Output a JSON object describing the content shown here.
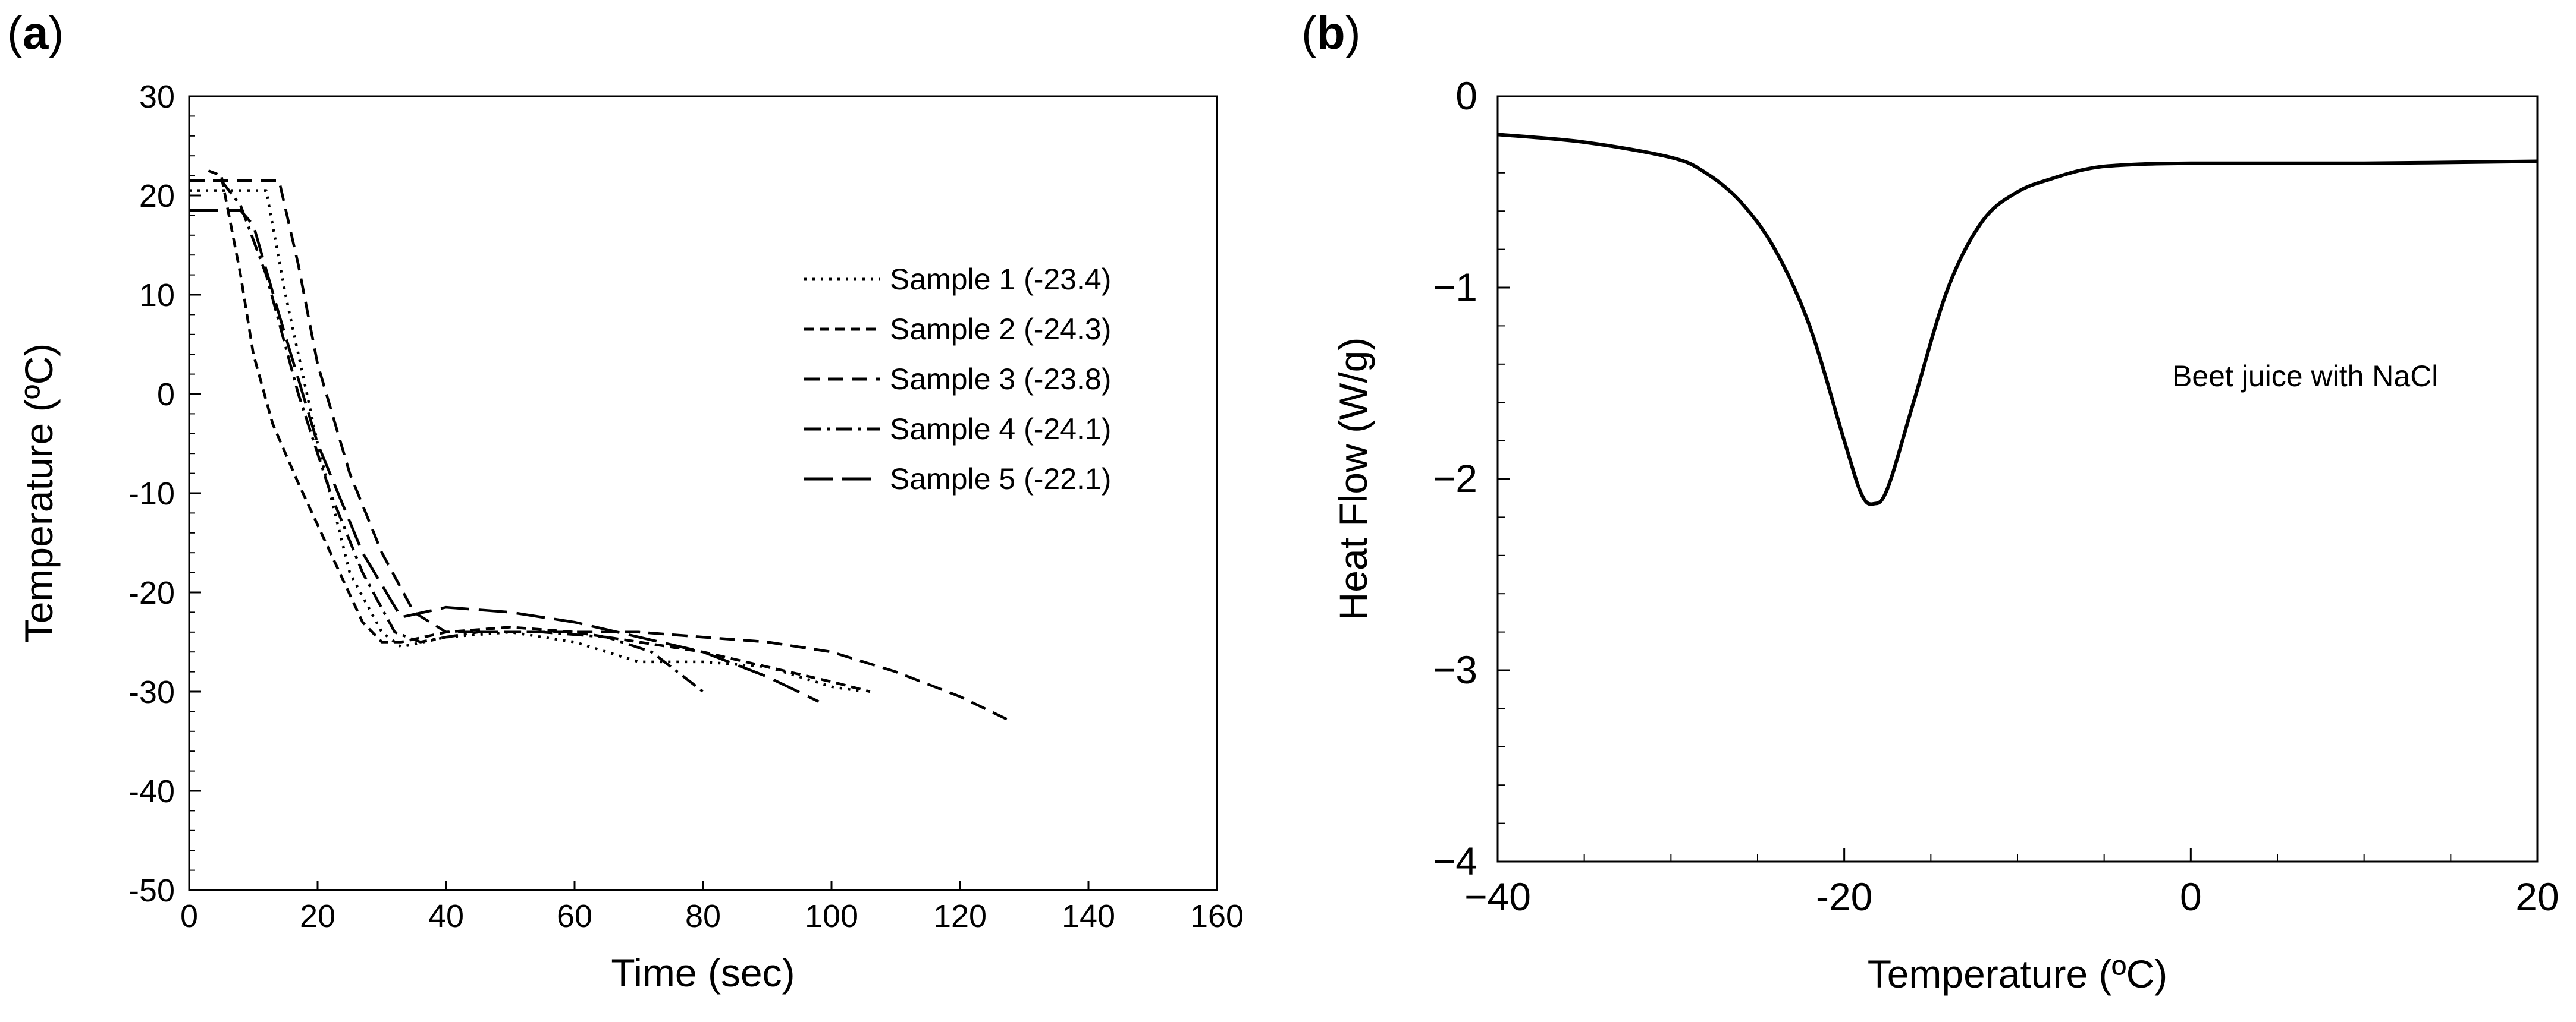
{
  "panels": {
    "a": {
      "open": "(",
      "letter": "a",
      "close": ")"
    },
    "b": {
      "open": "(",
      "letter": "b",
      "close": ")"
    }
  },
  "colors": {
    "line": "#000000",
    "background": "#ffffff"
  },
  "chart_data": [
    {
      "id": "a",
      "type": "line",
      "title": "",
      "xlabel": "Time (sec)",
      "ylabel": "Temperature (ºC)",
      "xlim": [
        0,
        160
      ],
      "ylim": [
        -50,
        30
      ],
      "xticks": [
        0,
        20,
        40,
        60,
        80,
        100,
        120,
        140,
        160
      ],
      "yticks": [
        30,
        20,
        10,
        0,
        -10,
        -20,
        -30,
        -40,
        -50
      ],
      "grid": false,
      "legend_position": "center-right",
      "series": [
        {
          "name": "Sample 1 (-23.4)",
          "style": "dotted",
          "x": [
            0,
            12,
            15,
            20,
            25,
            30,
            33,
            40,
            50,
            60,
            70,
            80,
            90,
            100,
            105
          ],
          "y": [
            20.5,
            20.5,
            10,
            -5,
            -18,
            -24,
            -25.5,
            -24.5,
            -24,
            -25,
            -27,
            -27,
            -27.5,
            -29.5,
            -30
          ]
        },
        {
          "name": "Sample 2 (-24.3)",
          "style": "short-dash",
          "x": [
            3,
            5,
            8,
            10,
            13,
            17,
            22,
            27,
            30,
            33,
            40,
            50,
            60,
            70,
            80,
            90,
            100,
            106
          ],
          "y": [
            22.5,
            22,
            12,
            4,
            -3,
            -9,
            -16,
            -23,
            -25,
            -25,
            -24,
            -23.5,
            -24,
            -25,
            -26,
            -27.5,
            -29,
            -30
          ]
        },
        {
          "name": "Sample 3 (-23.8)",
          "style": "medium-dash",
          "x": [
            0,
            14,
            17,
            20,
            25,
            30,
            35,
            40,
            50,
            60,
            70,
            80,
            90,
            100,
            110,
            120,
            128
          ],
          "y": [
            21.5,
            21.5,
            13,
            3,
            -8,
            -16,
            -22,
            -24,
            -24,
            -24,
            -24,
            -24.5,
            -25,
            -26,
            -28,
            -30.5,
            -33
          ]
        },
        {
          "name": "Sample 4 (-24.1)",
          "style": "dash-dot",
          "x": [
            5,
            8,
            12,
            17,
            22,
            27,
            32,
            36,
            40,
            45,
            55,
            65,
            72,
            78,
            80
          ],
          "y": [
            21.5,
            19,
            12,
            0,
            -10,
            -18,
            -24,
            -25,
            -24.5,
            -24,
            -24,
            -24.5,
            -26,
            -29,
            -30
          ]
        },
        {
          "name": "Sample 5 (-22.1)",
          "style": "long-dash",
          "x": [
            0,
            8,
            10,
            14,
            20,
            27,
            33,
            40,
            50,
            60,
            70,
            80,
            90,
            98
          ],
          "y": [
            18.5,
            18.5,
            17,
            8,
            -5,
            -16,
            -22.5,
            -21.5,
            -22,
            -23,
            -24.5,
            -26,
            -28.5,
            -31
          ]
        }
      ]
    },
    {
      "id": "b",
      "type": "line",
      "title": "",
      "xlabel": "Temperature (ºC)",
      "ylabel": "Heat Flow (W/g)",
      "xlim": [
        -40,
        20
      ],
      "ylim": [
        -4,
        0
      ],
      "xticks": [
        -40,
        -20,
        0,
        20
      ],
      "xtick_labels": [
        "−40",
        "-20",
        "0",
        "20"
      ],
      "yticks": [
        0,
        -1,
        -2,
        -3,
        -4
      ],
      "ytick_labels": [
        "0",
        "−1",
        "−2",
        "−3",
        "−4"
      ],
      "grid": false,
      "annotation": "Beet juice with NaCl",
      "series": [
        {
          "name": "Beet juice with NaCl",
          "style": "solid",
          "x": [
            -40,
            -35,
            -30,
            -28,
            -26,
            -24,
            -22,
            -20,
            -19,
            -18.3,
            -17.5,
            -16,
            -14,
            -12,
            -10,
            -8,
            -6,
            -4,
            0,
            10,
            20
          ],
          "y": [
            -0.2,
            -0.24,
            -0.32,
            -0.4,
            -0.55,
            -0.8,
            -1.2,
            -1.8,
            -2.08,
            -2.13,
            -2.05,
            -1.6,
            -1.0,
            -0.65,
            -0.5,
            -0.43,
            -0.38,
            -0.36,
            -0.35,
            -0.35,
            -0.34
          ]
        }
      ]
    }
  ]
}
